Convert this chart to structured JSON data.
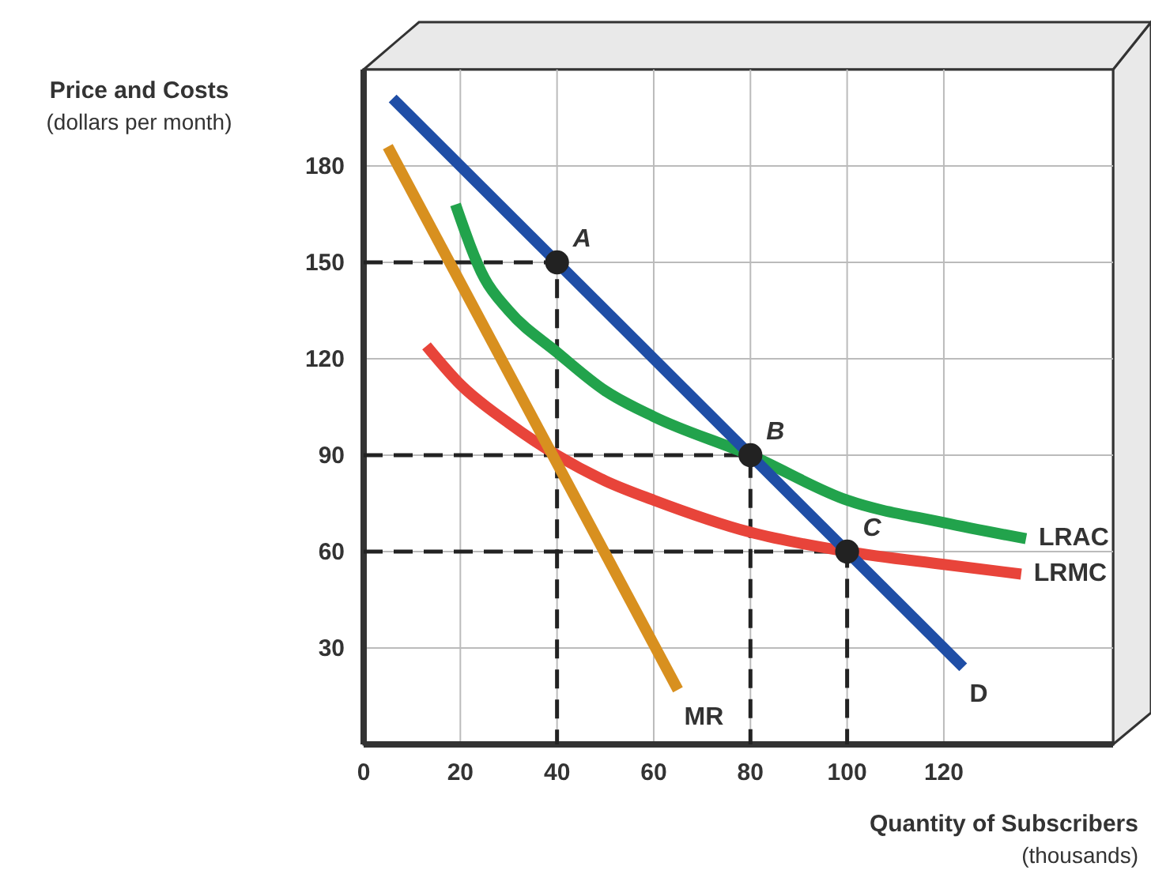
{
  "chart_data": {
    "type": "line",
    "xlabel": "Quantity of Subscribers\n(thousands)",
    "ylabel": "Price and Costs\n(dollars per month)",
    "xlim": [
      0,
      155
    ],
    "ylim": [
      0,
      210
    ],
    "xticks": [
      0,
      20,
      40,
      60,
      80,
      100,
      120
    ],
    "yticks": [
      30,
      60,
      90,
      120,
      150,
      180
    ],
    "grid": true,
    "series": [
      {
        "type": "line",
        "color": "#222222",
        "line_style": "dashed",
        "x": [
          0,
          40,
          40
        ],
        "values": [
          150,
          150,
          0
        ]
      },
      {
        "type": "line",
        "color": "#222222",
        "line_style": "dashed",
        "x": [
          0,
          80,
          80
        ],
        "values": [
          90,
          90,
          0
        ]
      },
      {
        "type": "line",
        "color": "#222222",
        "line_style": "dashed",
        "x": [
          0,
          100,
          100
        ],
        "values": [
          60,
          60,
          0
        ]
      },
      {
        "name": "LRMC",
        "color": "#e8443a",
        "x": [
          13,
          20,
          30,
          40,
          50,
          60,
          80,
          100,
          120,
          136
        ],
        "values": [
          124,
          112,
          100,
          90,
          82,
          76,
          66,
          60,
          56,
          53
        ]
      },
      {
        "name": "LRAC",
        "color": "#22a34c",
        "x": [
          19,
          25,
          30,
          40,
          50,
          60,
          80,
          100,
          120,
          137
        ],
        "values": [
          168,
          145,
          135,
          122,
          110,
          102,
          90,
          76,
          69,
          64
        ]
      },
      {
        "name": "MR",
        "color": "#d8901f",
        "x": [
          5,
          65
        ],
        "values": [
          186,
          17
        ]
      },
      {
        "name": "D",
        "color": "#1f4ea6",
        "x": [
          6,
          124
        ],
        "values": [
          201,
          24
        ]
      },
      {
        "type": "scatter",
        "color": "#222222",
        "marker": "circle",
        "x": [
          40,
          80,
          100
        ],
        "values": [
          150,
          90,
          60
        ]
      }
    ],
    "annotations": [
      {
        "text": "A",
        "x": 40,
        "y": 150
      },
      {
        "text": "B",
        "x": 80,
        "y": 90
      },
      {
        "text": "C",
        "x": 100,
        "y": 60
      }
    ]
  }
}
